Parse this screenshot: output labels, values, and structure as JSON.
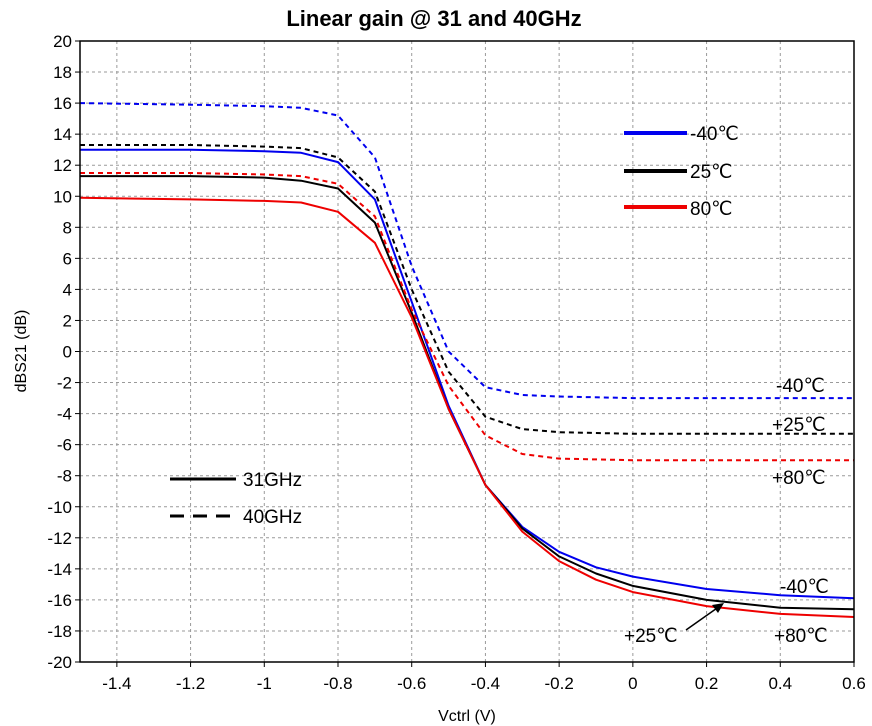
{
  "chart_data": {
    "type": "line",
    "title": "Linear gain @ 31 and 40GHz",
    "xlabel": "Vctrl (V)",
    "ylabel": "dBS21 (dB)",
    "xlim": [
      -1.5,
      0.6
    ],
    "ylim": [
      -20,
      20
    ],
    "xticks": [
      -1.4,
      -1.2,
      -1,
      -0.8,
      -0.6,
      -0.4,
      -0.2,
      0,
      0.2,
      0.4,
      0.6
    ],
    "xtick_labels": [
      "-1.4",
      "-1.2",
      "-1",
      "-0.8",
      "-0.6",
      "-0.4",
      "-0.2",
      "0",
      "0.2",
      "0.4",
      "0.6"
    ],
    "yticks": [
      -20,
      -18,
      -16,
      -14,
      -12,
      -10,
      -8,
      -6,
      -4,
      -2,
      0,
      2,
      4,
      6,
      8,
      10,
      12,
      14,
      16,
      18,
      20
    ],
    "ytick_labels": [
      "-20",
      "-18",
      "-16",
      "-14",
      "-12",
      "-10",
      "-8",
      "-6",
      "-4",
      "-2",
      "0",
      "2",
      "4",
      "6",
      "8",
      "10",
      "12",
      "14",
      "16",
      "18",
      "20"
    ],
    "grid": true,
    "series": [
      {
        "color": "#0000ee",
        "dash": "solid",
        "x": [
          -1.5,
          -1.2,
          -1.0,
          -0.9,
          -0.8,
          -0.7,
          -0.6,
          -0.5,
          -0.4,
          -0.3,
          -0.2,
          -0.1,
          0.0,
          0.2,
          0.4,
          0.6
        ],
        "y": [
          13.0,
          13.0,
          12.9,
          12.8,
          12.2,
          9.8,
          3.2,
          -3.5,
          -8.6,
          -11.3,
          -12.9,
          -13.9,
          -14.5,
          -15.3,
          -15.7,
          -15.9
        ]
      },
      {
        "color": "#000000",
        "dash": "solid",
        "x": [
          -1.5,
          -1.2,
          -1.0,
          -0.9,
          -0.8,
          -0.7,
          -0.6,
          -0.5,
          -0.4,
          -0.3,
          -0.2,
          -0.1,
          0.0,
          0.2,
          0.4,
          0.6
        ],
        "y": [
          11.3,
          11.3,
          11.2,
          11.0,
          10.5,
          8.3,
          2.5,
          -3.7,
          -8.6,
          -11.4,
          -13.2,
          -14.3,
          -15.1,
          -16.0,
          -16.5,
          -16.6
        ]
      },
      {
        "color": "#ee0000",
        "dash": "solid",
        "x": [
          -1.5,
          -1.2,
          -1.0,
          -0.9,
          -0.8,
          -0.7,
          -0.6,
          -0.5,
          -0.4,
          -0.3,
          -0.2,
          -0.1,
          0.0,
          0.2,
          0.4,
          0.6
        ],
        "y": [
          9.9,
          9.8,
          9.7,
          9.6,
          9.0,
          7.0,
          2.2,
          -3.7,
          -8.6,
          -11.6,
          -13.5,
          -14.7,
          -15.5,
          -16.4,
          -16.9,
          -17.1
        ]
      },
      {
        "color": "#0000ee",
        "dash": "dashed",
        "x": [
          -1.5,
          -1.2,
          -1.0,
          -0.9,
          -0.8,
          -0.7,
          -0.6,
          -0.5,
          -0.4,
          -0.3,
          -0.2,
          0.0,
          0.2,
          0.4,
          0.6
        ],
        "y": [
          16.0,
          15.9,
          15.8,
          15.7,
          15.2,
          12.5,
          5.5,
          0.0,
          -2.3,
          -2.8,
          -2.9,
          -3.0,
          -3.0,
          -3.0,
          -3.0
        ]
      },
      {
        "color": "#000000",
        "dash": "dashed",
        "x": [
          -1.5,
          -1.2,
          -1.0,
          -0.9,
          -0.8,
          -0.7,
          -0.6,
          -0.5,
          -0.4,
          -0.3,
          -0.2,
          0.0,
          0.2,
          0.4,
          0.6
        ],
        "y": [
          13.3,
          13.3,
          13.2,
          13.1,
          12.5,
          10.3,
          4.0,
          -1.3,
          -4.2,
          -5.0,
          -5.2,
          -5.3,
          -5.3,
          -5.3,
          -5.3
        ]
      },
      {
        "color": "#ee0000",
        "dash": "dashed",
        "x": [
          -1.5,
          -1.2,
          -1.0,
          -0.9,
          -0.8,
          -0.7,
          -0.6,
          -0.5,
          -0.4,
          -0.3,
          -0.2,
          0.0,
          0.2,
          0.4,
          0.6
        ],
        "y": [
          11.5,
          11.5,
          11.4,
          11.3,
          10.8,
          8.7,
          2.7,
          -2.2,
          -5.4,
          -6.6,
          -6.9,
          -7.0,
          -7.0,
          -7.0,
          -7.0
        ]
      }
    ],
    "legend_temperature": [
      {
        "label": "-40℃",
        "color": "#0000ee"
      },
      {
        "label": "25℃",
        "color": "#000000"
      },
      {
        "label": "80℃",
        "color": "#ee0000"
      }
    ],
    "legend_frequency": [
      {
        "label": "31GHz",
        "dash": "solid"
      },
      {
        "label": "40GHz",
        "dash": "dashed"
      }
    ],
    "annotations": {
      "dashed_m40": "-40℃",
      "dashed_p25": "+25℃",
      "dashed_p80": "+80℃",
      "solid_m40": "-40℃",
      "solid_p25": "+25℃",
      "solid_p80": "+80℃"
    }
  }
}
